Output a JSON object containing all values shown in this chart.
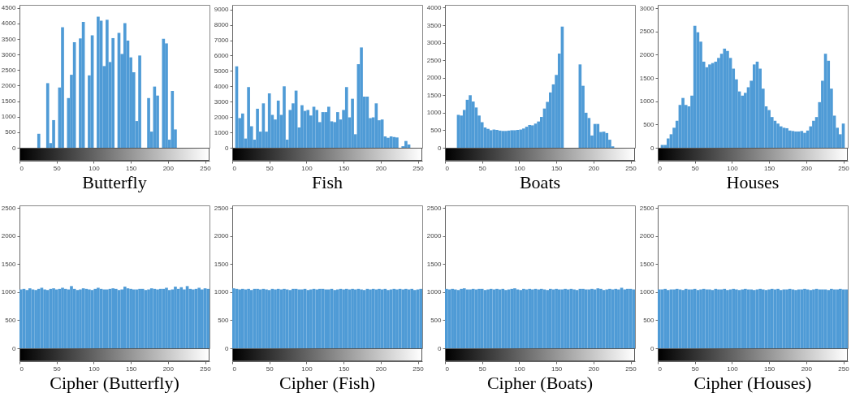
{
  "chart_data": [
    {
      "type": "histogram",
      "title": "Butterfly",
      "color": "#4f9bd6",
      "xlim": [
        0,
        256
      ],
      "xticks": [
        0,
        50,
        100,
        150,
        200,
        250
      ],
      "ylim": [
        0,
        4600
      ],
      "yticks": [
        0,
        500,
        1000,
        1500,
        2000,
        2500,
        3000,
        3500,
        4000,
        4500
      ],
      "bins": [
        0,
        4,
        8,
        12,
        16,
        20,
        24,
        28,
        32,
        36,
        40,
        44,
        48,
        52,
        56,
        60,
        64,
        68,
        72,
        76,
        80,
        84,
        88,
        92,
        96,
        100,
        104,
        108,
        112,
        116,
        120,
        124,
        128,
        132,
        136,
        140,
        144,
        148,
        152,
        156,
        160,
        164,
        168,
        172,
        176,
        180,
        184,
        188,
        192,
        196,
        200,
        204,
        208,
        212,
        216,
        220,
        224,
        228,
        232,
        236,
        240,
        244,
        248,
        252,
        256
      ],
      "values": [
        0,
        0,
        0,
        0,
        0,
        0,
        450,
        0,
        0,
        2080,
        150,
        890,
        null,
        1940,
        3880,
        null,
        1600,
        2350,
        3400,
        null,
        3520,
        4050,
        null,
        2330,
        3620,
        null,
        4220,
        4090,
        2630,
        4120,
        2760,
        3530,
        null,
        3700,
        3020,
        4010,
        3450,
        2910,
        2430,
        860,
        2970,
        null,
        null,
        1600,
        520,
        1970,
        1680,
        null,
        3510,
        3360,
        260,
        1830,
        590,
        0,
        0,
        0,
        0,
        0,
        0,
        0,
        0,
        0,
        0,
        0
      ]
    },
    {
      "type": "histogram",
      "title": "Fish",
      "color": "#4f9bd6",
      "xlim": [
        0,
        256
      ],
      "xticks": [
        0,
        50,
        100,
        150,
        200,
        250
      ],
      "ylim": [
        0,
        9300
      ],
      "yticks": [
        0,
        1000,
        2000,
        3000,
        4000,
        5000,
        6000,
        7000,
        8000,
        9000
      ],
      "bins": [
        0,
        4,
        8,
        12,
        16,
        20,
        24,
        28,
        32,
        36,
        40,
        44,
        48,
        52,
        56,
        60,
        64,
        68,
        72,
        76,
        80,
        84,
        88,
        92,
        96,
        100,
        104,
        108,
        112,
        116,
        120,
        124,
        128,
        132,
        136,
        140,
        144,
        148,
        152,
        156,
        160,
        164,
        168,
        172,
        176,
        180,
        184,
        188,
        192,
        196,
        200,
        204,
        208,
        212,
        216,
        220,
        224,
        228,
        232,
        236,
        240,
        244,
        248,
        252,
        256
      ],
      "values": [
        null,
        5300,
        1930,
        2230,
        600,
        3950,
        1400,
        530,
        2540,
        1050,
        2890,
        1050,
        3540,
        2140,
        1840,
        3070,
        2140,
        4000,
        530,
        2460,
        2890,
        3720,
        1320,
        2770,
        2400,
        2460,
        2100,
        2670,
        2460,
        1670,
        2320,
        2320,
        2670,
        1720,
        1670,
        2320,
        1840,
        2460,
        3950,
        1980,
        3190,
        880,
        5440,
        6530,
        3330,
        3330,
        1930,
        1980,
        2890,
        1790,
        1840,
        740,
        650,
        740,
        700,
        670,
        0,
        100,
        440,
        210,
        0,
        0,
        0,
        0
      ]
    },
    {
      "type": "histogram",
      "title": "Boats",
      "color": "#4f9bd6",
      "xlim": [
        0,
        256
      ],
      "xticks": [
        0,
        50,
        100,
        150,
        200,
        250
      ],
      "ylim": [
        0,
        4080
      ],
      "yticks": [
        0,
        500,
        1000,
        1500,
        2000,
        2500,
        3000,
        3500,
        4000
      ],
      "bins": [
        0,
        4,
        8,
        12,
        16,
        20,
        24,
        28,
        32,
        36,
        40,
        44,
        48,
        52,
        56,
        60,
        64,
        68,
        72,
        76,
        80,
        84,
        88,
        92,
        96,
        100,
        104,
        108,
        112,
        116,
        120,
        124,
        128,
        132,
        136,
        140,
        144,
        148,
        152,
        156,
        160,
        164,
        168,
        172,
        176,
        180,
        184,
        188,
        192,
        196,
        200,
        204,
        208,
        212,
        216,
        220,
        224,
        228,
        232,
        236,
        240,
        244,
        248,
        252,
        256
      ],
      "values": [
        0,
        0,
        0,
        0,
        940,
        920,
        1080,
        1370,
        1500,
        1320,
        1150,
        920,
        730,
        580,
        540,
        500,
        520,
        510,
        490,
        480,
        480,
        490,
        500,
        500,
        510,
        520,
        550,
        600,
        650,
        640,
        690,
        750,
        880,
        1120,
        1310,
        1580,
        1810,
        2080,
        2690,
        3460,
        null,
        null,
        null,
        null,
        null,
        2380,
        1770,
        1000,
        850,
        350,
        680,
        680,
        450,
        460,
        420,
        230,
        40,
        0,
        0,
        0,
        0,
        0,
        0,
        0
      ]
    },
    {
      "type": "histogram",
      "title": "Houses",
      "color": "#4f9bd6",
      "xlim": [
        0,
        256
      ],
      "xticks": [
        0,
        50,
        100,
        150,
        200,
        250
      ],
      "ylim": [
        0,
        3070
      ],
      "yticks": [
        0,
        500,
        1000,
        1500,
        2000,
        2500,
        3000
      ],
      "bins": [
        0,
        4,
        8,
        12,
        16,
        20,
        24,
        28,
        32,
        36,
        40,
        44,
        48,
        52,
        56,
        60,
        64,
        68,
        72,
        76,
        80,
        84,
        88,
        92,
        96,
        100,
        104,
        108,
        112,
        116,
        120,
        124,
        128,
        132,
        136,
        140,
        144,
        148,
        152,
        156,
        160,
        164,
        168,
        172,
        176,
        180,
        184,
        188,
        192,
        196,
        200,
        204,
        208,
        212,
        216,
        220,
        224,
        228,
        232,
        236,
        240,
        244,
        248,
        252,
        256
      ],
      "values": [
        0,
        60,
        60,
        200,
        290,
        430,
        580,
        920,
        1070,
        920,
        890,
        1120,
        2620,
        2480,
        2280,
        1850,
        1730,
        1790,
        1820,
        1850,
        1930,
        2020,
        2130,
        2080,
        1930,
        1700,
        1470,
        1210,
        1120,
        1180,
        1300,
        1440,
        1790,
        1850,
        1700,
        1270,
        890,
        810,
        660,
        580,
        520,
        460,
        430,
        420,
        370,
        360,
        350,
        350,
        360,
        320,
        370,
        460,
        580,
        660,
        980,
        1440,
        2020,
        1870,
        1270,
        690,
        430,
        290,
        520,
        null
      ]
    },
    {
      "type": "histogram",
      "title": "Cipher (Butterfly)",
      "color": "#4f9bd6",
      "xlim": [
        0,
        256
      ],
      "xticks": [
        0,
        50,
        100,
        150,
        200,
        250
      ],
      "ylim": [
        0,
        2550
      ],
      "yticks": [
        0,
        500,
        1000,
        1500,
        2000,
        2500
      ],
      "bins": [
        0,
        4,
        8,
        12,
        16,
        20,
        24,
        28,
        32,
        36,
        40,
        44,
        48,
        52,
        56,
        60,
        64,
        68,
        72,
        76,
        80,
        84,
        88,
        92,
        96,
        100,
        104,
        108,
        112,
        116,
        120,
        124,
        128,
        132,
        136,
        140,
        144,
        148,
        152,
        156,
        160,
        164,
        168,
        172,
        176,
        180,
        184,
        188,
        192,
        196,
        200,
        204,
        208,
        212,
        216,
        220,
        224,
        228,
        232,
        236,
        240,
        244,
        248,
        252,
        256
      ],
      "values": [
        1050,
        1060,
        1040,
        1070,
        1050,
        1040,
        1060,
        1080,
        1050,
        1040,
        1060,
        1070,
        1050,
        1060,
        1080,
        1060,
        1050,
        1110,
        1060,
        1040,
        1050,
        1070,
        1060,
        1050,
        1040,
        1060,
        1080,
        1060,
        1050,
        1050,
        1060,
        1070,
        1060,
        1040,
        1050,
        1100,
        1070,
        1060,
        1050,
        1050,
        1060,
        1060,
        1040,
        1050,
        1070,
        1060,
        1050,
        1060,
        1060,
        1080,
        1040,
        1050,
        1100,
        1060,
        1090,
        1050,
        1110,
        1060,
        1050,
        1060,
        1080,
        1050,
        1070,
        1060
      ]
    },
    {
      "type": "histogram",
      "title": "Cipher (Fish)",
      "color": "#4f9bd6",
      "xlim": [
        0,
        256
      ],
      "xticks": [
        0,
        50,
        100,
        150,
        200,
        250
      ],
      "ylim": [
        0,
        2550
      ],
      "yticks": [
        0,
        500,
        1000,
        1500,
        2000,
        2500
      ],
      "bins": [
        0,
        4,
        8,
        12,
        16,
        20,
        24,
        28,
        32,
        36,
        40,
        44,
        48,
        52,
        56,
        60,
        64,
        68,
        72,
        76,
        80,
        84,
        88,
        92,
        96,
        100,
        104,
        108,
        112,
        116,
        120,
        124,
        128,
        132,
        136,
        140,
        144,
        148,
        152,
        156,
        160,
        164,
        168,
        172,
        176,
        180,
        184,
        188,
        192,
        196,
        200,
        204,
        208,
        212,
        216,
        220,
        224,
        228,
        232,
        236,
        240,
        244,
        248,
        252,
        256
      ],
      "values": [
        1070,
        1060,
        1050,
        1060,
        1050,
        1060,
        1040,
        1060,
        1060,
        1050,
        1060,
        1050,
        1040,
        1060,
        1050,
        1060,
        1050,
        1060,
        1050,
        1040,
        1060,
        1060,
        1050,
        1050,
        1060,
        1040,
        1050,
        1060,
        1050,
        1060,
        1060,
        1050,
        1050,
        1060,
        1040,
        1050,
        1060,
        1050,
        1060,
        1050,
        1060,
        1050,
        1060,
        1050,
        1040,
        1060,
        1050,
        1060,
        1050,
        1060,
        1050,
        1060,
        1040,
        1050,
        1060,
        1050,
        1060,
        1050,
        1060,
        1050,
        1060,
        1040,
        1050,
        1060
      ]
    },
    {
      "type": "histogram",
      "title": "Cipher (Boats)",
      "color": "#4f9bd6",
      "xlim": [
        0,
        256
      ],
      "xticks": [
        0,
        50,
        100,
        150,
        200,
        250
      ],
      "ylim": [
        0,
        2550
      ],
      "yticks": [
        0,
        500,
        1000,
        1500,
        2000,
        2500
      ],
      "bins": [
        0,
        4,
        8,
        12,
        16,
        20,
        24,
        28,
        32,
        36,
        40,
        44,
        48,
        52,
        56,
        60,
        64,
        68,
        72,
        76,
        80,
        84,
        88,
        92,
        96,
        100,
        104,
        108,
        112,
        116,
        120,
        124,
        128,
        132,
        136,
        140,
        144,
        148,
        152,
        156,
        160,
        164,
        168,
        172,
        176,
        180,
        184,
        188,
        192,
        196,
        200,
        204,
        208,
        212,
        216,
        220,
        224,
        228,
        232,
        236,
        240,
        244,
        248,
        252,
        256
      ],
      "values": [
        1060,
        1050,
        1060,
        1050,
        1040,
        1060,
        1070,
        1050,
        1050,
        1060,
        1050,
        1060,
        1060,
        1040,
        1050,
        1060,
        1050,
        1060,
        1050,
        1060,
        1040,
        1050,
        1060,
        1070,
        1050,
        1040,
        1060,
        1050,
        1060,
        1050,
        1060,
        1050,
        1060,
        1050,
        1040,
        1060,
        1050,
        1060,
        1050,
        1050,
        1060,
        1050,
        1060,
        1050,
        1040,
        1060,
        1060,
        1050,
        1050,
        1060,
        1050,
        1070,
        1060,
        1040,
        1050,
        1060,
        1050,
        1060,
        1050,
        1080,
        1050,
        1060,
        1060,
        1050
      ]
    },
    {
      "type": "histogram",
      "title": "Cipher (Houses)",
      "color": "#4f9bd6",
      "xlim": [
        0,
        256
      ],
      "xticks": [
        0,
        50,
        100,
        150,
        200,
        250
      ],
      "ylim": [
        0,
        2550
      ],
      "yticks": [
        0,
        500,
        1000,
        1500,
        2000,
        2500
      ],
      "bins": [
        0,
        4,
        8,
        12,
        16,
        20,
        24,
        28,
        32,
        36,
        40,
        44,
        48,
        52,
        56,
        60,
        64,
        68,
        72,
        76,
        80,
        84,
        88,
        92,
        96,
        100,
        104,
        108,
        112,
        116,
        120,
        124,
        128,
        132,
        136,
        140,
        144,
        148,
        152,
        156,
        160,
        164,
        168,
        172,
        176,
        180,
        184,
        188,
        192,
        196,
        200,
        204,
        208,
        212,
        216,
        220,
        224,
        228,
        232,
        236,
        240,
        244,
        248,
        252,
        256
      ],
      "values": [
        1050,
        1050,
        1060,
        1040,
        1050,
        1050,
        1060,
        1050,
        1040,
        1060,
        1050,
        1050,
        1060,
        1040,
        1050,
        1060,
        1050,
        1050,
        1040,
        1060,
        1050,
        1050,
        1060,
        1040,
        1050,
        1060,
        1050,
        1040,
        1050,
        1060,
        1050,
        1050,
        1040,
        1050,
        1060,
        1050,
        1040,
        1050,
        1060,
        1050,
        1060,
        1040,
        1050,
        1050,
        1060,
        1050,
        1040,
        1050,
        1050,
        1060,
        1050,
        1040,
        1050,
        1060,
        1050,
        1050,
        1050,
        1040,
        1060,
        1050,
        1050,
        1060,
        1050,
        1050
      ]
    }
  ]
}
